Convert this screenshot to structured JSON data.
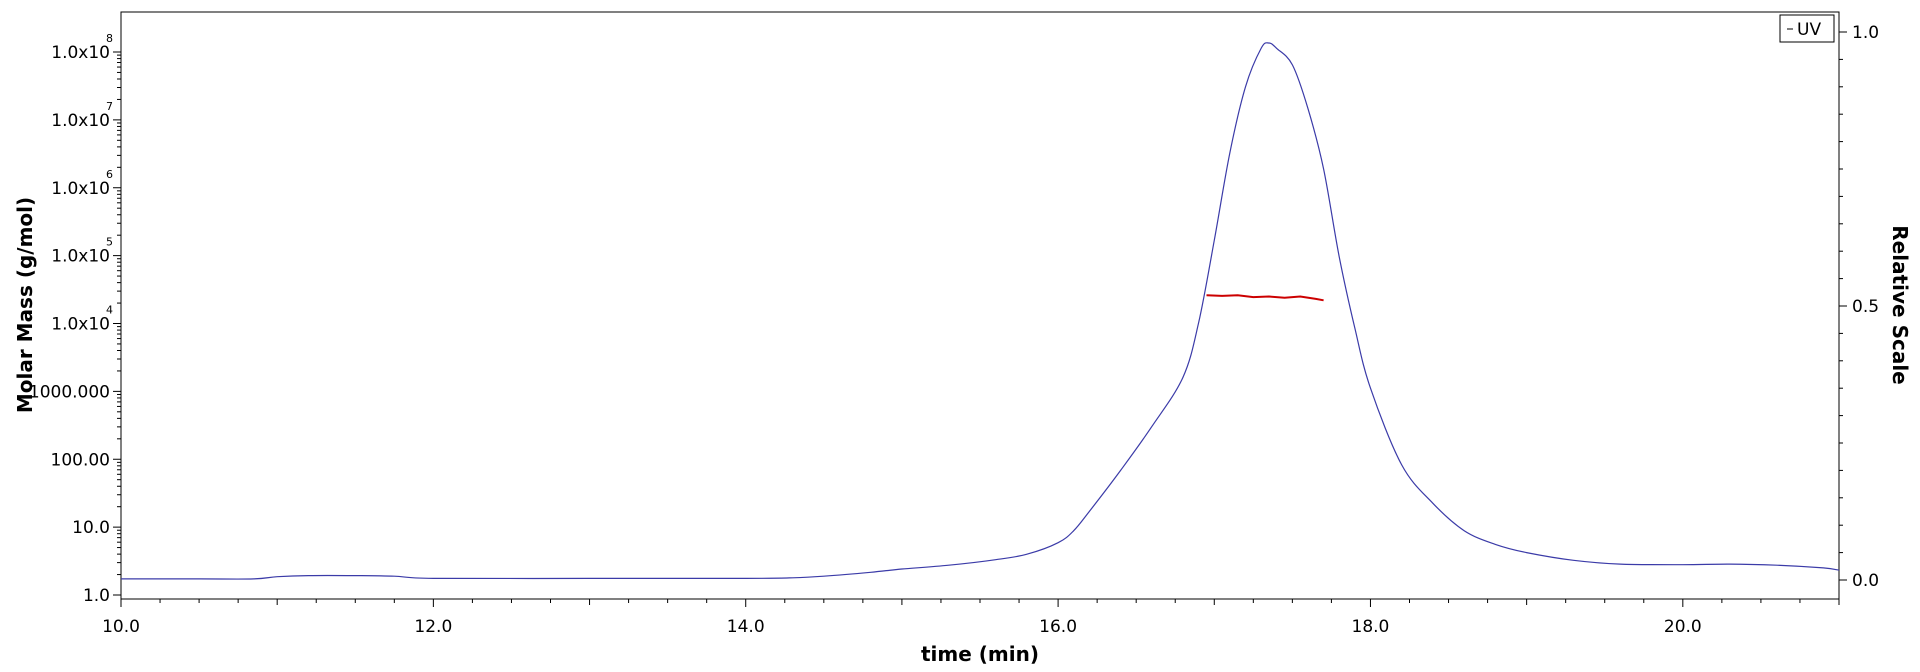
{
  "chart_data": {
    "type": "line",
    "xlabel": "time (min)",
    "ylabel_left": "Molar Mass (g/mol)",
    "ylabel_right": "Relative Scale",
    "xlim": [
      10.0,
      21.0
    ],
    "x_ticks": [
      10.0,
      12.0,
      14.0,
      16.0,
      18.0,
      20.0
    ],
    "x_tick_labels": [
      "10.0",
      "12.0",
      "14.0",
      "16.0",
      "18.0",
      "20.0"
    ],
    "y_left_scale": "log",
    "y_left_lim": [
      1,
      100000000
    ],
    "y_left_ticks": [
      {
        "value": 1,
        "label": "1.0",
        "exp": ""
      },
      {
        "value": 10,
        "label": "10.0",
        "exp": ""
      },
      {
        "value": 100,
        "label": "100.00",
        "exp": ""
      },
      {
        "value": 1000,
        "label": "1000.000",
        "exp": ""
      },
      {
        "value": 10000,
        "label": "1.0x10",
        "exp": "4"
      },
      {
        "value": 100000,
        "label": "1.0x10",
        "exp": "5"
      },
      {
        "value": 1000000,
        "label": "1.0x10",
        "exp": "6"
      },
      {
        "value": 10000000,
        "label": "1.0x10",
        "exp": "7"
      },
      {
        "value": 100000000,
        "label": "1.0x10",
        "exp": "8"
      }
    ],
    "y_right_lim": [
      0.0,
      1.0
    ],
    "y_right_ticks": [
      {
        "value": 0.0,
        "label": "0.0"
      },
      {
        "value": 0.5,
        "label": "0.5"
      },
      {
        "value": 1.0,
        "label": "1.0"
      }
    ],
    "legend": {
      "position": "top-right",
      "entries": [
        "UV"
      ]
    },
    "grid": false,
    "series": [
      {
        "name": "UV",
        "axis": "right",
        "color": "#3b3ba8",
        "x": [
          10.0,
          10.5,
          10.85,
          11.0,
          11.2,
          11.5,
          11.75,
          12.0,
          13.0,
          14.0,
          14.3,
          14.5,
          14.8,
          15.0,
          15.3,
          15.6,
          15.8,
          16.0,
          16.1,
          16.2,
          16.4,
          16.6,
          16.8,
          16.9,
          17.0,
          17.1,
          17.2,
          17.3,
          17.35,
          17.4,
          17.5,
          17.6,
          17.7,
          17.8,
          17.9,
          18.0,
          18.2,
          18.4,
          18.6,
          18.8,
          19.0,
          19.3,
          19.6,
          20.0,
          20.3,
          20.6,
          20.9,
          21.0
        ],
        "y": [
          0.002,
          0.002,
          0.002,
          0.006,
          0.008,
          0.008,
          0.007,
          0.003,
          0.003,
          0.003,
          0.004,
          0.007,
          0.014,
          0.02,
          0.027,
          0.037,
          0.047,
          0.068,
          0.09,
          0.125,
          0.2,
          0.28,
          0.37,
          0.47,
          0.62,
          0.78,
          0.9,
          0.97,
          0.98,
          0.97,
          0.94,
          0.86,
          0.75,
          0.59,
          0.46,
          0.35,
          0.21,
          0.14,
          0.09,
          0.065,
          0.05,
          0.036,
          0.029,
          0.028,
          0.029,
          0.027,
          0.022,
          0.018
        ]
      },
      {
        "name": "",
        "axis": "left",
        "color": "#cc0000",
        "x": [
          16.95,
          17.05,
          17.15,
          17.25,
          17.35,
          17.45,
          17.55,
          17.65,
          17.7
        ],
        "y": [
          26000,
          25500,
          26000,
          24500,
          25000,
          24000,
          25000,
          23000,
          22000
        ]
      }
    ]
  }
}
